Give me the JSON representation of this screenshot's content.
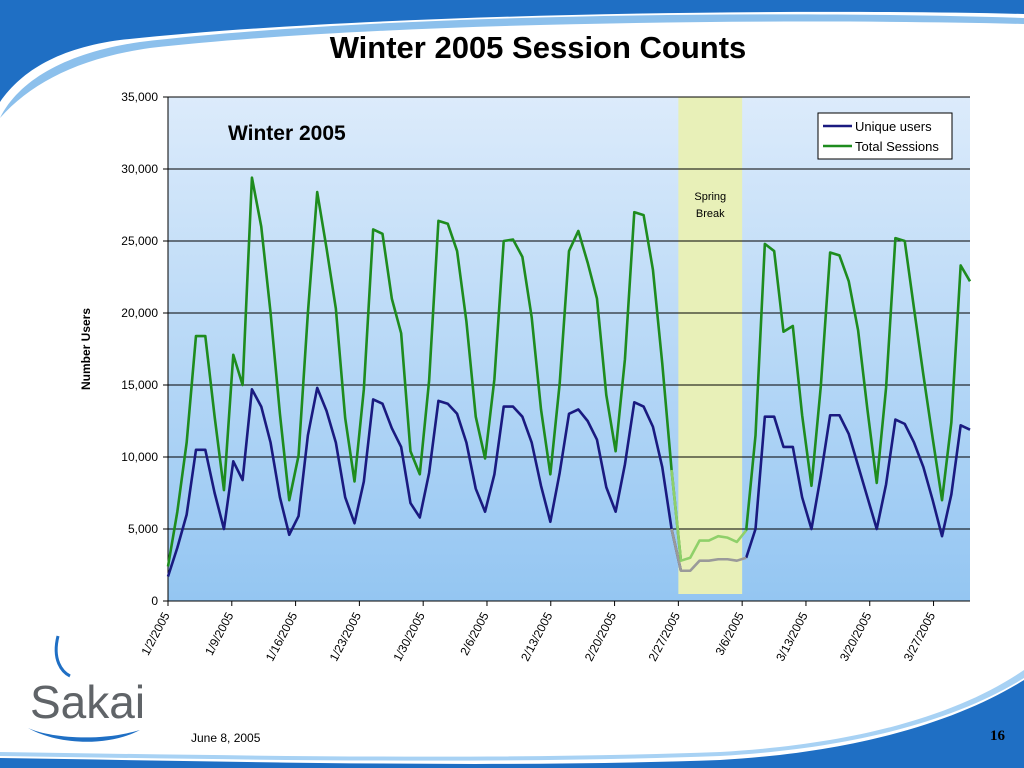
{
  "slide": {
    "title": "Winter 2005 Session Counts",
    "date": "June 8, 2005",
    "page_number": "16",
    "logo_text": "Sakai"
  },
  "colors": {
    "header_blue": "#1f6fc4",
    "plot_bg_top": "#dcebfb",
    "plot_bg_bottom": "#94c6f2",
    "unique_users": "#1a1a80",
    "total_sessions": "#1e8c1e",
    "break_highlight": "#e8f0b8",
    "break_total_sessions": "#8fd06a",
    "break_unique_users": "#9a9a9a"
  },
  "chart_data": {
    "type": "line",
    "title": "Winter 2005",
    "xlabel": "",
    "ylabel": "Number Users",
    "ylim": [
      0,
      35000
    ],
    "yticks": [
      "0",
      "5,000",
      "10,000",
      "15,000",
      "20,000",
      "25,000",
      "30,000",
      "35,000"
    ],
    "ytick_values": [
      0,
      5000,
      10000,
      15000,
      20000,
      25000,
      30000,
      35000
    ],
    "xtick_labels": [
      "1/2/2005",
      "1/9/2005",
      "1/16/2005",
      "1/23/2005",
      "1/30/2005",
      "2/6/2005",
      "2/13/2005",
      "2/20/2005",
      "2/27/2005",
      "3/6/2005",
      "3/13/2005",
      "3/20/2005",
      "3/27/2005"
    ],
    "start_date": "1/2/2005",
    "end_date": "3/31/2005",
    "grid": true,
    "legend_position": "top-right",
    "annotation": {
      "label": "Spring Break",
      "x_from": "2/27/2005",
      "x_to": "3/6/2005"
    },
    "series": [
      {
        "name": "Unique users",
        "values": [
          1700,
          3700,
          6000,
          10500,
          10500,
          7500,
          5000,
          9700,
          8400,
          14700,
          13500,
          11000,
          7200,
          4600,
          5900,
          11500,
          14800,
          13200,
          11000,
          7200,
          5400,
          8300,
          14000,
          13700,
          12000,
          10700,
          6800,
          5800,
          8900,
          13900,
          13700,
          13000,
          11000,
          7800,
          6200,
          8800,
          13500,
          13500,
          12800,
          11000,
          8000,
          5500,
          8900,
          13000,
          13300,
          12500,
          11200,
          7900,
          6200,
          9500,
          13800,
          13500,
          12100,
          9300,
          5000,
          2100,
          2100,
          2800,
          2800,
          2900,
          2900,
          2800,
          3000,
          5000,
          12800,
          12800,
          10700,
          10700,
          7200,
          5000,
          8700,
          12900,
          12900,
          11600,
          9400,
          7200,
          5000,
          8100,
          12600,
          12300,
          11000,
          9300,
          7000,
          4500,
          7400,
          12200,
          11900
        ]
      },
      {
        "name": "Total Sessions",
        "values": [
          2400,
          6200,
          11000,
          18400,
          18400,
          12800,
          7700,
          17100,
          15000,
          29400,
          26000,
          20000,
          13000,
          7000,
          10100,
          20000,
          28400,
          24500,
          20300,
          12700,
          8300,
          14700,
          25800,
          25500,
          21000,
          18600,
          10400,
          8800,
          15300,
          26400,
          26200,
          24300,
          19400,
          12800,
          9900,
          15400,
          25000,
          25100,
          23900,
          19700,
          13300,
          8800,
          15100,
          24300,
          25700,
          23500,
          21000,
          14300,
          10400,
          16800,
          27000,
          26800,
          23000,
          16500,
          9100,
          2800,
          3000,
          4200,
          4200,
          4500,
          4400,
          4100,
          4900,
          11500,
          24800,
          24300,
          18700,
          19100,
          12900,
          8000,
          14900,
          24200,
          24000,
          22200,
          18800,
          13300,
          8200,
          14800,
          25200,
          25000,
          20300,
          15700,
          11300,
          7000,
          12400,
          23300,
          22200
        ]
      }
    ]
  }
}
